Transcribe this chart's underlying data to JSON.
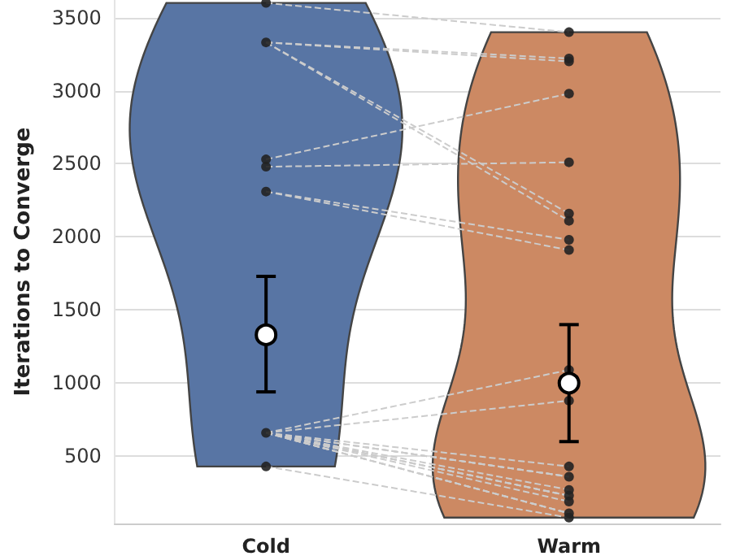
{
  "chart_data": {
    "type": "scatter",
    "ylabel": "Iterations to Converge",
    "categories": [
      "Cold",
      "Warm"
    ],
    "colors": [
      "#5875a4",
      "#cc8963"
    ],
    "ylim": [
      40,
      3620
    ],
    "yticks": [
      500,
      1000,
      1500,
      2000,
      2500,
      3000,
      3500
    ],
    "grid": "y",
    "marker": "circle",
    "series": [
      {
        "type": "line",
        "values": [
          3600,
          3400
        ],
        "color": "#cccccc",
        "line_style": "dashed",
        "marker": "none"
      },
      {
        "type": "line",
        "values": [
          3330,
          3220
        ],
        "color": "#cccccc",
        "line_style": "dashed",
        "marker": "none"
      },
      {
        "type": "line",
        "values": [
          3330,
          3200
        ],
        "color": "#cccccc",
        "line_style": "dashed",
        "marker": "none"
      },
      {
        "type": "line",
        "values": [
          3330,
          2160
        ],
        "color": "#cccccc",
        "line_style": "dashed",
        "marker": "none"
      },
      {
        "type": "line",
        "values": [
          3330,
          2110
        ],
        "color": "#cccccc",
        "line_style": "dashed",
        "marker": "none"
      },
      {
        "type": "line",
        "values": [
          2530,
          2980
        ],
        "color": "#cccccc",
        "line_style": "dashed",
        "marker": "none"
      },
      {
        "type": "line",
        "values": [
          2480,
          2510
        ],
        "color": "#cccccc",
        "line_style": "dashed",
        "marker": "none"
      },
      {
        "type": "line",
        "values": [
          2310,
          1980
        ],
        "color": "#cccccc",
        "line_style": "dashed",
        "marker": "none"
      },
      {
        "type": "line",
        "values": [
          2310,
          1910
        ],
        "color": "#cccccc",
        "line_style": "dashed",
        "marker": "none"
      },
      {
        "type": "line",
        "values": [
          660,
          1090
        ],
        "color": "#cccccc",
        "line_style": "dashed",
        "marker": "none"
      },
      {
        "type": "line",
        "values": [
          660,
          880
        ],
        "color": "#cccccc",
        "line_style": "dashed",
        "marker": "none"
      },
      {
        "type": "line",
        "values": [
          660,
          430
        ],
        "color": "#cccccc",
        "line_style": "dashed",
        "marker": "none"
      },
      {
        "type": "line",
        "values": [
          660,
          360
        ],
        "color": "#cccccc",
        "line_style": "dashed",
        "marker": "none"
      },
      {
        "type": "line",
        "values": [
          660,
          360
        ],
        "color": "#cccccc",
        "line_style": "dashed",
        "marker": "none"
      },
      {
        "type": "line",
        "values": [
          660,
          360
        ],
        "color": "#cccccc",
        "line_style": "dashed",
        "marker": "none"
      },
      {
        "type": "line",
        "values": [
          660,
          270
        ],
        "color": "#cccccc",
        "line_style": "dashed",
        "marker": "none"
      },
      {
        "type": "line",
        "values": [
          660,
          230
        ],
        "color": "#cccccc",
        "line_style": "dashed",
        "marker": "none"
      },
      {
        "type": "line",
        "values": [
          660,
          230
        ],
        "color": "#cccccc",
        "line_style": "dashed",
        "marker": "none"
      },
      {
        "type": "line",
        "values": [
          660,
          230
        ],
        "color": "#cccccc",
        "line_style": "dashed",
        "marker": "none"
      },
      {
        "type": "line",
        "values": [
          660,
          190
        ],
        "color": "#cccccc",
        "line_style": "dashed",
        "marker": "none"
      },
      {
        "type": "line",
        "values": [
          660,
          110
        ],
        "color": "#cccccc",
        "line_style": "dashed",
        "marker": "none"
      },
      {
        "type": "line",
        "values": [
          660,
          110
        ],
        "color": "#cccccc",
        "line_style": "dashed",
        "marker": "none"
      },
      {
        "type": "line",
        "values": [
          660,
          110
        ],
        "color": "#cccccc",
        "line_style": "dashed",
        "marker": "none"
      },
      {
        "type": "line",
        "values": [
          430,
          80
        ],
        "color": "#cccccc",
        "line_style": "dashed",
        "marker": "none"
      },
      {
        "x": [
          "Cold",
          "Cold",
          "Cold",
          "Cold",
          "Cold",
          "Cold",
          "Cold"
        ],
        "values": [
          3600,
          3330,
          2530,
          2480,
          2310,
          660,
          430
        ],
        "color": "#222222"
      },
      {
        "x": [
          "Warm",
          "Warm",
          "Warm",
          "Warm",
          "Warm",
          "Warm",
          "Warm",
          "Warm",
          "Warm",
          "Warm",
          "Warm",
          "Warm",
          "Warm",
          "Warm",
          "Warm",
          "Warm",
          "Warm",
          "Warm"
        ],
        "values": [
          3400,
          3220,
          3200,
          2160,
          2110,
          2980,
          2510,
          1980,
          1910,
          1090,
          880,
          430,
          360,
          270,
          230,
          190,
          110,
          80
        ],
        "color": "#222222"
      },
      {
        "values": [
          1330,
          1000
        ],
        "errors": [
          [
            940,
            1730
          ],
          [
            600,
            1400
          ]
        ],
        "color": "#ffffff"
      }
    ]
  }
}
